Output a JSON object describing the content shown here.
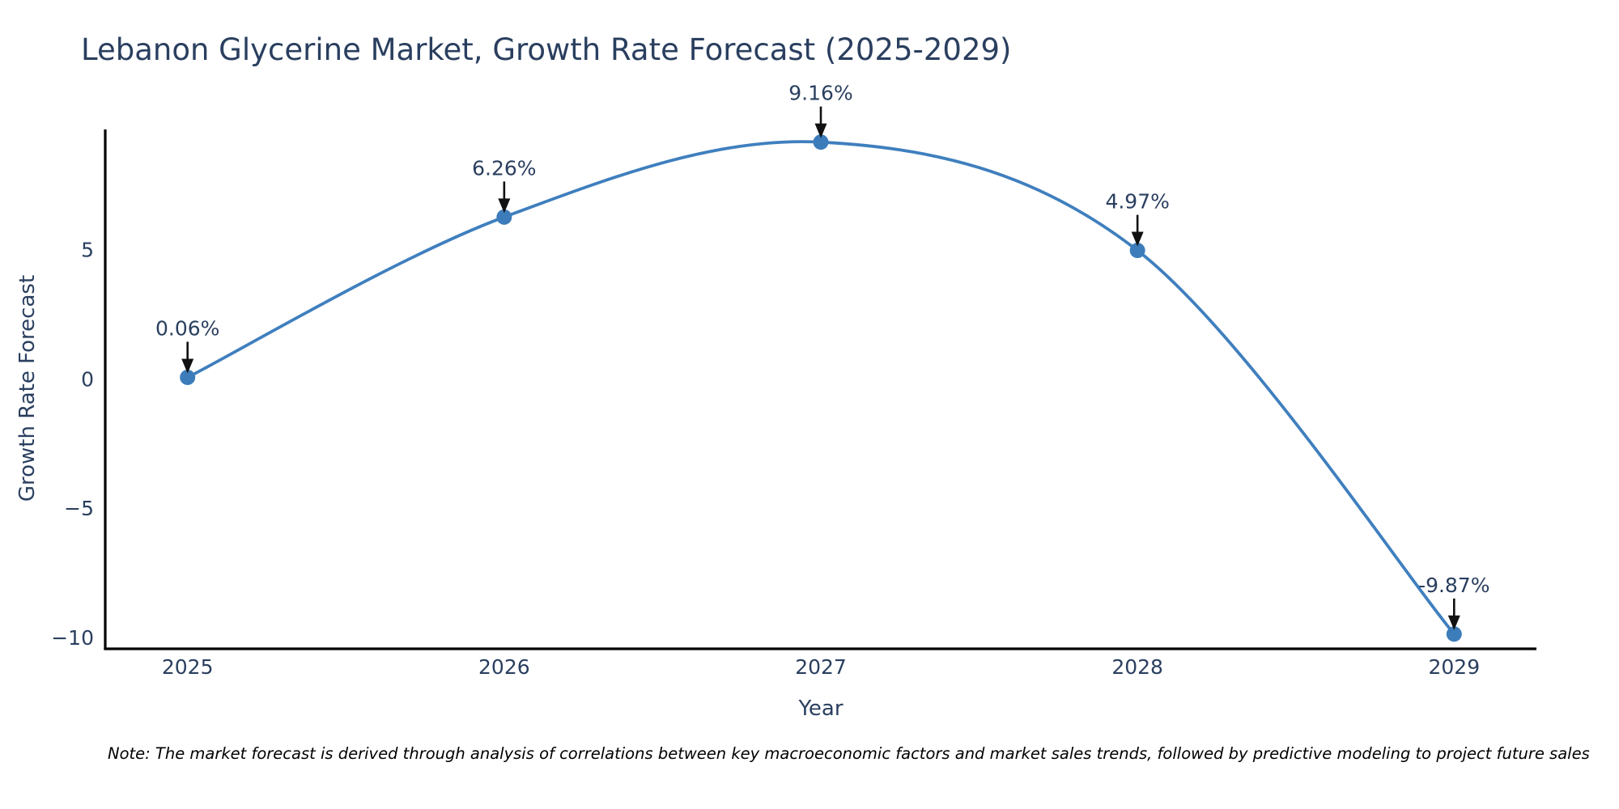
{
  "chart_data": {
    "type": "line",
    "title": "Lebanon Glycerine Market, Growth Rate Forecast (2025-2029)",
    "xlabel": "Year",
    "ylabel": "Growth Rate Forecast",
    "x": [
      2025,
      2026,
      2027,
      2028,
      2029
    ],
    "x_tick_labels": [
      "2025",
      "2026",
      "2027",
      "2028",
      "2029"
    ],
    "series": [
      {
        "name": "Growth Rate Forecast",
        "values": [
          0.06,
          6.26,
          9.16,
          4.97,
          -9.87
        ]
      }
    ],
    "point_labels": [
      "0.06%",
      "6.26%",
      "9.16%",
      "4.97%",
      "-9.87%"
    ],
    "y_ticks": {
      "values": [
        5,
        0,
        -5,
        -10
      ],
      "labels": [
        "5",
        "0",
        "−5",
        "−10"
      ]
    },
    "xlim": [
      2024.74,
      2029.26
    ],
    "ylim": [
      -10.44,
      9.65
    ],
    "grid": false,
    "legend": "none",
    "line_shape": "spline",
    "background": "#ffffff",
    "colors": {
      "line": "#3f7fbe",
      "marker": "#3d7cba",
      "text": "#2a3f5f",
      "axis": "#000000",
      "arrow": "#111111"
    }
  },
  "note": {
    "text": "Note: The market forecast is derived through analysis of correlations between key macroeconomic factors and market sales trends, followed by predictive modeling to project future sales"
  }
}
